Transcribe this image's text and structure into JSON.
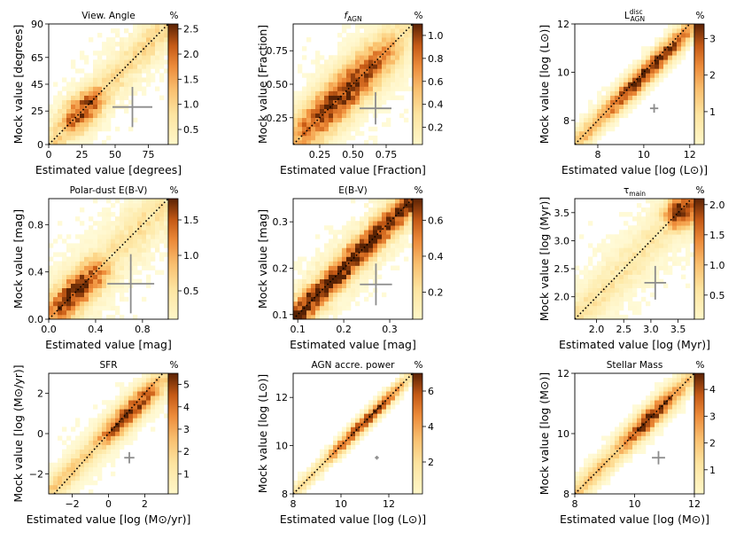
{
  "figure": {
    "cbar_unit": "%"
  },
  "chart_data": [
    {
      "type": "heatmap",
      "title": "View. Angle",
      "xlabel": "Estimated value [degrees]",
      "ylabel": "Mock value [degrees]",
      "xlim": [
        0,
        90
      ],
      "ylim": [
        0,
        90
      ],
      "xticks": [
        0,
        25,
        50,
        75
      ],
      "xtick_labels": [
        "0",
        "25",
        "50",
        "75"
      ],
      "yticks": [
        0,
        25,
        45,
        65,
        90
      ],
      "ytick_labels": [
        "0",
        "25",
        "45",
        "65",
        "90"
      ],
      "cbar_range": [
        0.2,
        2.6
      ],
      "cbar_ticks": [
        0.5,
        1.0,
        1.5,
        2.0,
        2.5
      ],
      "cbar_tick_labels": [
        "0.5",
        "1.0",
        "1.5",
        "2.0",
        "2.5"
      ],
      "density": {
        "diag_peak": 2.0,
        "diag_from": 0.15,
        "diag_to": 0.42,
        "spread": 0.11,
        "background": 0.35,
        "tail": 0.6
      },
      "error_bar": {
        "x": 63,
        "y": 28,
        "xerr": 15,
        "yerr": 15
      },
      "one_to_one_line": true
    },
    {
      "type": "heatmap",
      "title": "f",
      "title_sub": "AGN",
      "xlabel": "Estimated value [Fraction]",
      "ylabel": "Mock value [Fraction]",
      "xlim": [
        0.05,
        0.95
      ],
      "ylim": [
        0.05,
        0.95
      ],
      "xticks": [
        0.25,
        0.5,
        0.75
      ],
      "xtick_labels": [
        "0.25",
        "0.50",
        "0.75"
      ],
      "yticks": [
        0.25,
        0.5,
        0.75
      ],
      "ytick_labels": [
        "0.25",
        "0.50",
        "0.75"
      ],
      "cbar_range": [
        0.05,
        1.1
      ],
      "cbar_ticks": [
        0.2,
        0.4,
        0.6,
        0.8,
        1.0
      ],
      "cbar_tick_labels": [
        "0.2",
        "0.4",
        "0.6",
        "0.8",
        "1.0"
      ],
      "density": {
        "diag_peak": 1.0,
        "diag_from": 0.0,
        "diag_to": 0.85,
        "spread": 0.14,
        "background": 0.1,
        "tail": 0.2
      },
      "error_bar": {
        "x": 0.67,
        "y": 0.32,
        "xerr": 0.12,
        "yerr": 0.12
      },
      "one_to_one_line": true
    },
    {
      "type": "heatmap",
      "title": "L",
      "title_sup": "disc",
      "title_sub": "AGN",
      "xlabel": "Estimated value [log (L⊙)]",
      "ylabel": "Mock value [log (L⊙)]",
      "xlim": [
        7,
        12.2
      ],
      "ylim": [
        7,
        12
      ],
      "xticks": [
        8,
        10,
        12
      ],
      "xtick_labels": [
        "8",
        "10",
        "12"
      ],
      "yticks": [
        8,
        10,
        12
      ],
      "ytick_labels": [
        "8",
        "10",
        "12"
      ],
      "cbar_range": [
        0.1,
        3.4
      ],
      "cbar_ticks": [
        1,
        2,
        3
      ],
      "cbar_tick_labels": [
        "1",
        "2",
        "3"
      ],
      "density": {
        "diag_peak": 3.2,
        "diag_from": 0.25,
        "diag_to": 0.95,
        "spread": 0.07,
        "background": 0.05,
        "tail": 1.5
      },
      "error_bar": {
        "x": 10.45,
        "y": 8.5,
        "xerr": 0.18,
        "yerr": 0.18
      },
      "one_to_one_line": true
    },
    {
      "type": "heatmap",
      "title": "Polar-dust E(B-V)",
      "xlabel": "Estimated value [mag]",
      "ylabel": "Mock value [mag]",
      "xlim": [
        0,
        1.02
      ],
      "ylim": [
        0,
        1.02
      ],
      "xticks": [
        0,
        0.4,
        0.8
      ],
      "xtick_labels": [
        "0.0",
        "0.4",
        "0.8"
      ],
      "yticks": [
        0,
        0.4,
        0.8
      ],
      "ytick_labels": [
        "0.0",
        "0.4",
        "0.8"
      ],
      "cbar_range": [
        0.1,
        1.8
      ],
      "cbar_ticks": [
        0.5,
        1.0,
        1.5
      ],
      "cbar_tick_labels": [
        "0.5",
        "1.0",
        "1.5"
      ],
      "density": {
        "diag_peak": 1.6,
        "diag_from": 0.0,
        "diag_to": 0.45,
        "spread": 0.12,
        "background": 0.25,
        "tail": 0.3
      },
      "error_bar": {
        "x": 0.7,
        "y": 0.3,
        "xerr": 0.2,
        "yerr": 0.25
      },
      "one_to_one_line": true
    },
    {
      "type": "heatmap",
      "title": "E(B-V)",
      "xlabel": "Estimated value [mag]",
      "ylabel": "Mock value [mag]",
      "xlim": [
        0.09,
        0.35
      ],
      "ylim": [
        0.09,
        0.35
      ],
      "xticks": [
        0.1,
        0.2,
        0.3
      ],
      "xtick_labels": [
        "0.1",
        "0.2",
        "0.3"
      ],
      "yticks": [
        0.1,
        0.2,
        0.3
      ],
      "ytick_labels": [
        "0.1",
        "0.2",
        "0.3"
      ],
      "cbar_range": [
        0.05,
        0.72
      ],
      "cbar_ticks": [
        0.2,
        0.4,
        0.6
      ],
      "cbar_tick_labels": [
        "0.2",
        "0.4",
        "0.6"
      ],
      "density": {
        "diag_peak": 0.68,
        "diag_from": 0.0,
        "diag_to": 1.0,
        "spread": 0.09,
        "background": 0.15,
        "tail": 0.6
      },
      "error_bar": {
        "x": 0.27,
        "y": 0.165,
        "xerr": 0.035,
        "yerr": 0.045
      },
      "one_to_one_line": true
    },
    {
      "type": "heatmap",
      "title": "τ",
      "title_sub": "main",
      "xlabel": "Estimated value [log (Myr)]",
      "ylabel": "Mock value [log (Myr)]",
      "xlim": [
        1.6,
        3.8
      ],
      "ylim": [
        1.6,
        3.75
      ],
      "xticks": [
        2.0,
        2.5,
        3.0,
        3.5
      ],
      "xtick_labels": [
        "2.0",
        "2.5",
        "3.0",
        "3.5"
      ],
      "yticks": [
        2.0,
        2.5,
        3.0,
        3.5
      ],
      "ytick_labels": [
        "2.0",
        "2.5",
        "3.0",
        "3.5"
      ],
      "cbar_range": [
        0.1,
        2.1
      ],
      "cbar_ticks": [
        0.5,
        1.0,
        1.5,
        2.0
      ],
      "cbar_tick_labels": [
        "0.5",
        "1.0",
        "1.5",
        "2.0"
      ],
      "density": {
        "diag_peak": 2.0,
        "diag_from": 0.82,
        "diag_to": 1.0,
        "spread": 0.12,
        "background": 0.2,
        "tail": 0.35
      },
      "error_bar": {
        "x": 3.08,
        "y": 2.25,
        "xerr": 0.2,
        "yerr": 0.3
      },
      "one_to_one_line": true
    },
    {
      "type": "heatmap",
      "title": "SFR",
      "xlabel": "Estimated value [log (M⊙/yr)]",
      "ylabel": "Mock value [log (M⊙/yr)]",
      "xlim": [
        -3.3,
        3.3
      ],
      "ylim": [
        -3,
        3
      ],
      "xticks": [
        -2,
        0,
        2
      ],
      "xtick_labels": [
        "−2",
        "0",
        "2"
      ],
      "yticks": [
        -2,
        0,
        2
      ],
      "ytick_labels": [
        "−2",
        "0",
        "2"
      ],
      "cbar_range": [
        0.1,
        5.5
      ],
      "cbar_ticks": [
        1,
        2,
        3,
        4,
        5
      ],
      "cbar_tick_labels": [
        "1",
        "2",
        "3",
        "4",
        "5"
      ],
      "density": {
        "diag_peak": 5.0,
        "diag_from": 0.45,
        "diag_to": 0.9,
        "spread": 0.08,
        "background": 0.15,
        "tail": 1.8
      },
      "error_bar": {
        "x": 1.15,
        "y": -1.2,
        "xerr": 0.28,
        "yerr": 0.28
      },
      "one_to_one_line": true
    },
    {
      "type": "heatmap",
      "title": "AGN accre. power",
      "xlabel": "Estimated value [log (L⊙)]",
      "ylabel": "Mock value [log (L⊙)]",
      "xlim": [
        8,
        13
      ],
      "ylim": [
        8,
        13
      ],
      "xticks": [
        8,
        10,
        12
      ],
      "xtick_labels": [
        "8",
        "10",
        "12"
      ],
      "yticks": [
        8,
        10,
        12
      ],
      "ytick_labels": [
        "8",
        "10",
        "12"
      ],
      "cbar_range": [
        0.2,
        7
      ],
      "cbar_ticks": [
        2,
        4,
        6
      ],
      "cbar_tick_labels": [
        "2",
        "4",
        "6"
      ],
      "density": {
        "diag_peak": 6.5,
        "diag_from": 0.3,
        "diag_to": 0.9,
        "spread": 0.045,
        "background": 0.0,
        "tail": 2.0
      },
      "error_bar": {
        "x": 11.5,
        "y": 9.5,
        "xerr": 0.08,
        "yerr": 0.08
      },
      "one_to_one_line": true
    },
    {
      "type": "heatmap",
      "title": "Stellar Mass",
      "xlabel": "Estimated value [log (M⊙)]",
      "ylabel": "Mock value [log (M⊙)]",
      "xlim": [
        8,
        12
      ],
      "ylim": [
        8,
        12
      ],
      "xticks": [
        8,
        10,
        12
      ],
      "xtick_labels": [
        "8",
        "10",
        "12"
      ],
      "yticks": [
        8,
        10,
        12
      ],
      "ytick_labels": [
        "8",
        "10",
        "12"
      ],
      "cbar_range": [
        0.1,
        4.6
      ],
      "cbar_ticks": [
        1,
        2,
        3,
        4
      ],
      "cbar_tick_labels": [
        "1",
        "2",
        "3",
        "4"
      ],
      "density": {
        "diag_peak": 4.3,
        "diag_from": 0.4,
        "diag_to": 0.85,
        "spread": 0.07,
        "background": 0.05,
        "tail": 1.8
      },
      "error_bar": {
        "x": 10.8,
        "y": 9.2,
        "xerr": 0.22,
        "yerr": 0.22
      },
      "one_to_one_line": true
    }
  ]
}
